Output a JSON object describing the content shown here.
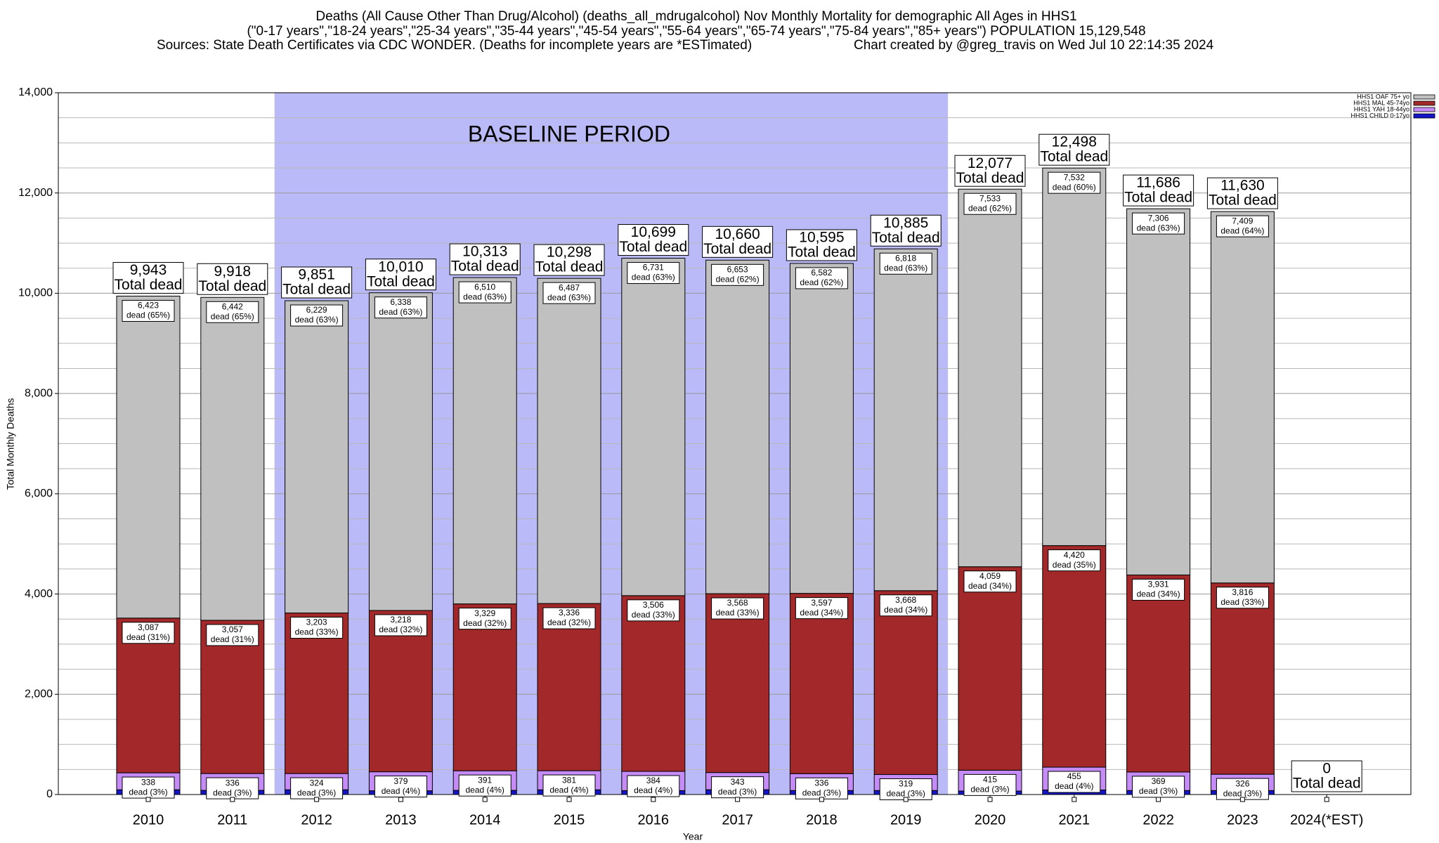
{
  "chart_data": {
    "type": "stacked-bar",
    "title": [
      "Deaths (All Cause Other Than Drug/Alcohol) (deaths_all_mdrugalcohol) Nov Monthly Mortality for demographic All Ages in HHS1",
      "(\"0-17 years\",\"18-24 years\",\"25-34 years\",\"35-44 years\",\"45-54 years\",\"55-64 years\",\"65-74 years\",\"75-84 years\",\"85+ years\") POPULATION 15,129,548"
    ],
    "sources": "Sources: State Death Certificates via CDC WONDER. (Deaths for incomplete years are *ESTimated)",
    "credit": "Chart created by @greg_travis on Wed Jul 10 22:14:35 2024",
    "x_label": "Year",
    "y_label": "Total Monthly Deaths",
    "categories": [
      "2010",
      "2011",
      "2012",
      "2013",
      "2014",
      "2015",
      "2016",
      "2017",
      "2018",
      "2019",
      "2020",
      "2021",
      "2022",
      "2023",
      "2024(*EST)"
    ],
    "ylim": [
      0,
      14000
    ],
    "yticks": [
      0,
      {
        "value": 2000,
        "label": "2,000"
      },
      {
        "value": 4000,
        "label": "4,000"
      },
      {
        "value": 6000,
        "label": "6,000"
      },
      {
        "value": 8000,
        "label": "8,000"
      },
      {
        "value": 10000,
        "label": "10,000"
      },
      {
        "value": 12000,
        "label": "12,000"
      },
      {
        "value": 14000,
        "label": "14,000"
      }
    ],
    "grid": true,
    "legend_position": "top-right",
    "baseline": {
      "label": "BASELINE PERIOD",
      "start": "2012",
      "end": "2019",
      "color": "#babaf8"
    },
    "series": [
      {
        "name": "HHS1 OAF 75+ yo",
        "color": "#c0c0c0",
        "values": [
          6423,
          6442,
          6229,
          6338,
          6510,
          6487,
          6731,
          6653,
          6582,
          6818,
          7533,
          7532,
          7306,
          7409,
          null
        ],
        "value_labels": [
          "6,423",
          "6,442",
          "6,229",
          "6,338",
          "6,510",
          "6,487",
          "6,731",
          "6,653",
          "6,582",
          "6,818",
          "7,533",
          "7,532",
          "7,306",
          "7,409",
          null
        ],
        "share_labels": [
          "dead (65%)",
          "dead (65%)",
          "dead (63%)",
          "dead (63%)",
          "dead (63%)",
          "dead (63%)",
          "dead (63%)",
          "dead (62%)",
          "dead (62%)",
          "dead (63%)",
          "dead (62%)",
          "dead (60%)",
          "dead (63%)",
          "dead (64%)",
          null
        ]
      },
      {
        "name": "HHS1 MAL 45-74yo",
        "color": "#a2282a",
        "values": [
          3087,
          3057,
          3203,
          3218,
          3329,
          3336,
          3506,
          3568,
          3597,
          3668,
          4059,
          4420,
          3931,
          3816,
          null
        ],
        "value_labels": [
          "3,087",
          "3,057",
          "3,203",
          "3,218",
          "3,329",
          "3,336",
          "3,506",
          "3,568",
          "3,597",
          "3,668",
          "4,059",
          "4,420",
          "3,931",
          "3,816",
          null
        ],
        "share_labels": [
          "dead (31%)",
          "dead (31%)",
          "dead (33%)",
          "dead (32%)",
          "dead (32%)",
          "dead (32%)",
          "dead (33%)",
          "dead (33%)",
          "dead (34%)",
          "dead (34%)",
          "dead (34%)",
          "dead (35%)",
          "dead (34%)",
          "dead (33%)",
          null
        ]
      },
      {
        "name": "HHS1 YAH 18-44yo",
        "color": "#c58cf8",
        "values": [
          338,
          336,
          324,
          379,
          391,
          381,
          384,
          343,
          336,
          319,
          415,
          455,
          369,
          326,
          null
        ],
        "share_labels": [
          "dead (3%)",
          "dead (3%)",
          "dead (3%)",
          "dead (4%)",
          "dead (4%)",
          "dead (4%)",
          "dead (4%)",
          "dead (3%)",
          "dead (3%)",
          "dead (3%)",
          "dead (3%)",
          "dead (4%)",
          "dead (3%)",
          "dead (3%)",
          null
        ]
      },
      {
        "name": "HHS1 CHILD 0-17yo",
        "color": "#1414c8",
        "values": [
          95,
          83,
          95,
          75,
          83,
          94,
          78,
          96,
          80,
          80,
          70,
          91,
          80,
          79,
          null
        ]
      }
    ],
    "totals": [
      9943,
      9918,
      9851,
      10010,
      10313,
      10298,
      10699,
      10660,
      10595,
      10885,
      12077,
      12498,
      11686,
      11630,
      0
    ],
    "total_labels": [
      "9,943",
      "9,918",
      "9,851",
      "10,010",
      "10,313",
      "10,298",
      "10,699",
      "10,660",
      "10,595",
      "10,885",
      "12,077",
      "12,498",
      "11,686",
      "11,630",
      "0"
    ],
    "total_caption": "Total dead"
  }
}
